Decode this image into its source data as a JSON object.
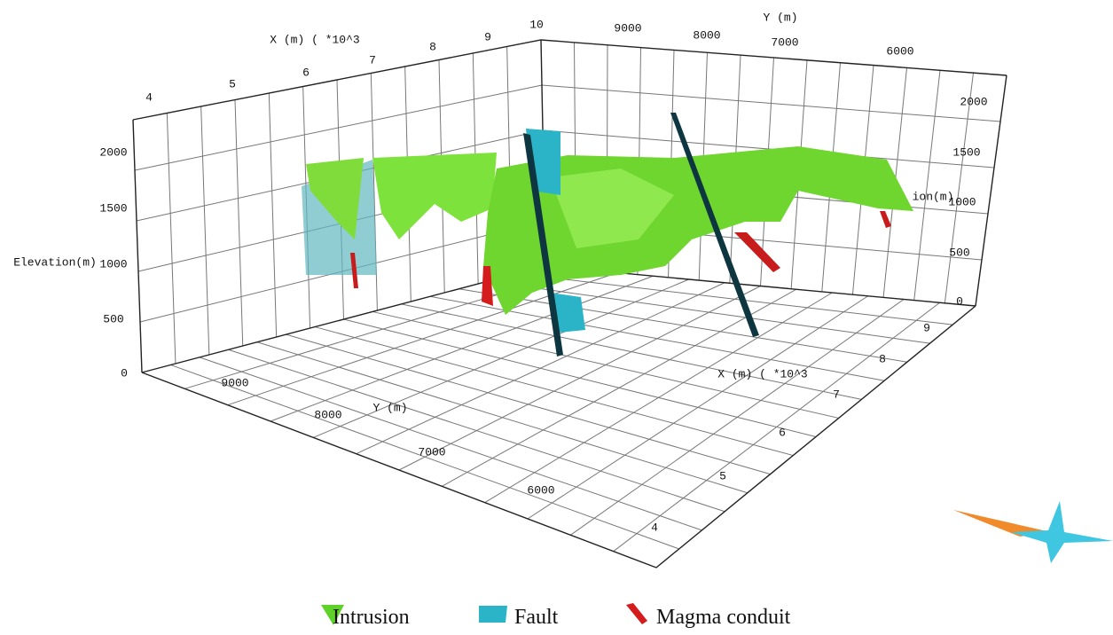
{
  "axes": {
    "x_top": {
      "label": "X (m) ( *10^3",
      "ticks": [
        "4",
        "5",
        "6",
        "7",
        "8",
        "9",
        "10"
      ]
    },
    "y_top": {
      "label": "Y (m)",
      "ticks": [
        "9000",
        "8000",
        "7000",
        "6000"
      ]
    },
    "elevation_left": {
      "label": "Elevation(m)",
      "ticks": [
        "2000",
        "1500",
        "1000",
        "500",
        "0"
      ]
    },
    "elevation_right": {
      "label": "ion(m)",
      "ticks": [
        "2000",
        "1500",
        "1000",
        "500",
        "0"
      ]
    },
    "y_bottom": {
      "label": "Y (m)",
      "ticks": [
        "9000",
        "8000",
        "7000",
        "6000"
      ]
    },
    "x_right": {
      "label": "X (m) ( *10^3",
      "ticks": [
        "4",
        "5",
        "6",
        "7",
        "8",
        "9"
      ]
    }
  },
  "legend": {
    "items": [
      "Intrusion",
      "Fault",
      "Magma conduit"
    ]
  }
}
